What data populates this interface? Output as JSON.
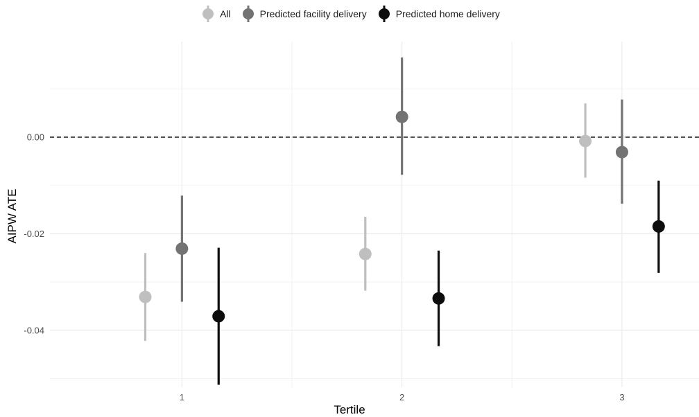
{
  "chart_data": {
    "type": "scatter",
    "subtype": "pointrange",
    "xlabel": "Tertile",
    "ylabel": "AIPW ATE",
    "categories": [
      "1",
      "2",
      "3"
    ],
    "y_ticks": [
      0.0,
      -0.02,
      -0.04
    ],
    "y_tick_labels": [
      "0.00",
      "-0.02",
      "-0.04"
    ],
    "ylim": [
      -0.0518,
      0.0198
    ],
    "reference_line": {
      "y": 0,
      "style": "dashed"
    },
    "legend_position": "top",
    "grid": true,
    "series": [
      {
        "name": "All",
        "color": "#bfbfbf",
        "values": [
          -0.0331,
          -0.0242,
          -0.0008
        ],
        "lower": [
          -0.0422,
          -0.0318,
          -0.0084
        ],
        "upper": [
          -0.024,
          -0.0165,
          0.007
        ]
      },
      {
        "name": "Predicted facility delivery",
        "color": "#737373",
        "values": [
          -0.0231,
          0.0042,
          -0.0031
        ],
        "lower": [
          -0.0341,
          -0.0078,
          -0.0138
        ],
        "upper": [
          -0.0121,
          0.0165,
          0.0078
        ]
      },
      {
        "name": "Predicted home delivery",
        "color": "#0d0d0d",
        "values": [
          -0.0371,
          -0.0334,
          -0.0185
        ],
        "lower": [
          -0.0513,
          -0.0433,
          -0.0281
        ],
        "upper": [
          -0.0229,
          -0.0235,
          -0.009
        ]
      }
    ]
  }
}
